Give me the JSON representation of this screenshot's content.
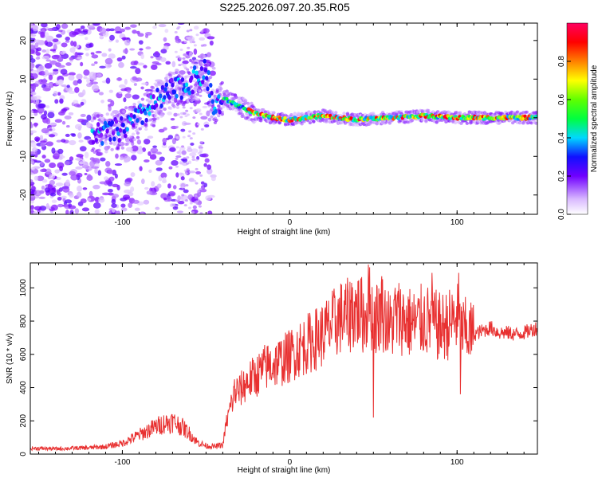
{
  "chart_data": [
    {
      "type": "heatmap",
      "title": "S225.2026.097.20.35.R05",
      "xlabel": "Height of straight line (km)",
      "ylabel": "Frequency (Hz)",
      "xlim": [
        -155,
        148
      ],
      "ylim": [
        -25,
        24.5
      ],
      "x_ticks": [
        -100,
        0,
        100
      ],
      "y_ticks": [
        -20,
        -10,
        0,
        10,
        20
      ],
      "colorbar": {
        "label": "Normalized spectral amplitude",
        "range": [
          0,
          1
        ],
        "ticks": [
          "0.0",
          "0.2",
          "0.4",
          "0.6",
          "0.8"
        ],
        "tick_values": [
          0,
          0.2,
          0.4,
          0.6,
          0.8
        ],
        "colors": [
          "#ffffff",
          "#c8a0f0",
          "#8020ff",
          "#1010ff",
          "#00e0ff",
          "#00ff00",
          "#ffff00",
          "#ff8000",
          "#ff0000",
          "#ff0080"
        ]
      },
      "ridge": {
        "x": [
          -110,
          -100,
          -90,
          -80,
          -70,
          -60,
          -50,
          -45,
          -40,
          -30,
          -20,
          -10,
          0,
          20,
          40,
          60,
          80,
          100,
          148
        ],
        "freq": [
          -4,
          -3,
          0,
          4,
          7,
          9,
          12,
          2,
          5,
          3,
          1,
          0,
          -0.5,
          0.5,
          -0.5,
          0,
          0.5,
          0,
          0
        ]
      }
    },
    {
      "type": "line",
      "xlabel": "Height of straight line (km)",
      "ylabel": "SNR (10 * v/v)",
      "xlim": [
        -155,
        148
      ],
      "ylim": [
        0,
        1150
      ],
      "x_ticks": [
        -100,
        0,
        100
      ],
      "y_ticks": [
        0,
        200,
        400,
        600,
        800,
        1000
      ],
      "color": "#e83030",
      "series": [
        {
          "name": "SNR",
          "x": [
            -155,
            -140,
            -120,
            -110,
            -100,
            -90,
            -80,
            -75,
            -70,
            -65,
            -60,
            -55,
            -50,
            -45,
            -40,
            -38,
            -35,
            -32,
            -30,
            -25,
            -20,
            -15,
            -10,
            -5,
            0,
            5,
            10,
            15,
            20,
            25,
            30,
            35,
            40,
            45,
            48,
            50,
            55,
            60,
            65,
            70,
            75,
            80,
            85,
            90,
            95,
            100,
            102,
            105,
            110,
            115,
            120,
            125,
            130,
            135,
            140,
            145,
            148
          ],
          "y": [
            35,
            32,
            38,
            45,
            65,
            115,
            165,
            185,
            195,
            170,
            125,
            70,
            50,
            45,
            55,
            180,
            300,
            380,
            380,
            440,
            470,
            520,
            540,
            560,
            590,
            630,
            660,
            690,
            720,
            770,
            820,
            830,
            870,
            820,
            900,
            800,
            860,
            770,
            830,
            800,
            780,
            810,
            790,
            760,
            780,
            820,
            740,
            740,
            720,
            740,
            760,
            730,
            730,
            720,
            730,
            750,
            760
          ]
        }
      ],
      "spikes": [
        {
          "x": -33,
          "y": 450
        },
        {
          "x": 37,
          "y": 1030
        },
        {
          "x": 47,
          "y": 1140
        },
        {
          "x": 50,
          "y": 220
        },
        {
          "x": 55,
          "y": 1070
        },
        {
          "x": 63,
          "y": 1000
        },
        {
          "x": 85,
          "y": 1090
        },
        {
          "x": 101,
          "y": 1090
        },
        {
          "x": 102,
          "y": 360
        }
      ]
    }
  ]
}
